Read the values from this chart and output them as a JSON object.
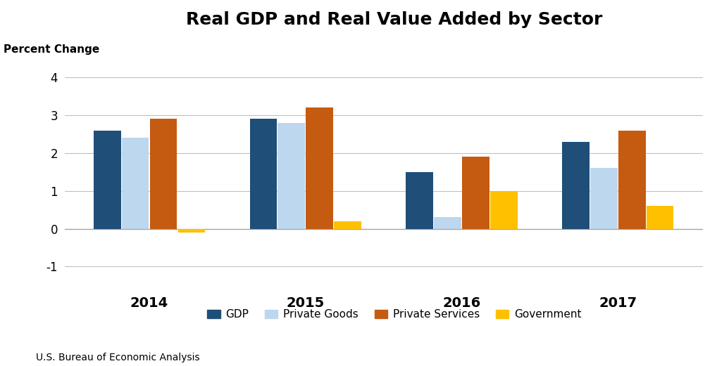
{
  "title": "Real GDP and Real Value Added by Sector",
  "ylabel": "Percent Change",
  "years": [
    "2014",
    "2015",
    "2016",
    "2017"
  ],
  "series": {
    "GDP": [
      2.6,
      2.9,
      1.5,
      2.3
    ],
    "Private Goods": [
      2.4,
      2.8,
      0.3,
      1.6
    ],
    "Private Services": [
      2.9,
      3.2,
      1.9,
      2.6
    ],
    "Government": [
      -0.1,
      0.2,
      1.0,
      0.6
    ]
  },
  "colors": {
    "GDP": "#1f4e79",
    "Private Goods": "#bdd7ee",
    "Private Services": "#c55a11",
    "Government": "#ffc000"
  },
  "ylim": [
    -1.5,
    4.5
  ],
  "yticks": [
    -1,
    0,
    1,
    2,
    3,
    4
  ],
  "source": "U.S. Bureau of Economic Analysis",
  "background_color": "#ffffff",
  "grid_color": "#c0c0c0",
  "title_fontsize": 18,
  "label_fontsize": 11,
  "tick_fontsize": 12,
  "legend_fontsize": 11,
  "source_fontsize": 10
}
